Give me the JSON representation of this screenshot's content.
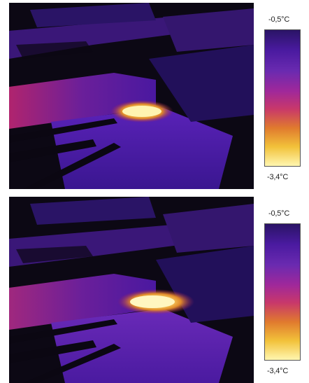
{
  "panels": [
    {
      "id": "top",
      "scale": {
        "max": "-0,5°C",
        "min": "-3,4°C"
      },
      "colormap": [
        "#2a1466",
        "#4a1aa0",
        "#6a2ab0",
        "#a0289a",
        "#c8386a",
        "#e07a2e",
        "#f2c23a",
        "#fff6b0"
      ]
    },
    {
      "id": "bottom",
      "scale": {
        "max": "-0,5°C",
        "min": "-3,4°C"
      },
      "colormap": [
        "#2a1466",
        "#4a1aa0",
        "#6a2ab0",
        "#a0289a",
        "#c8386a",
        "#e07a2e",
        "#f2c23a",
        "#fff6b0"
      ]
    }
  ]
}
